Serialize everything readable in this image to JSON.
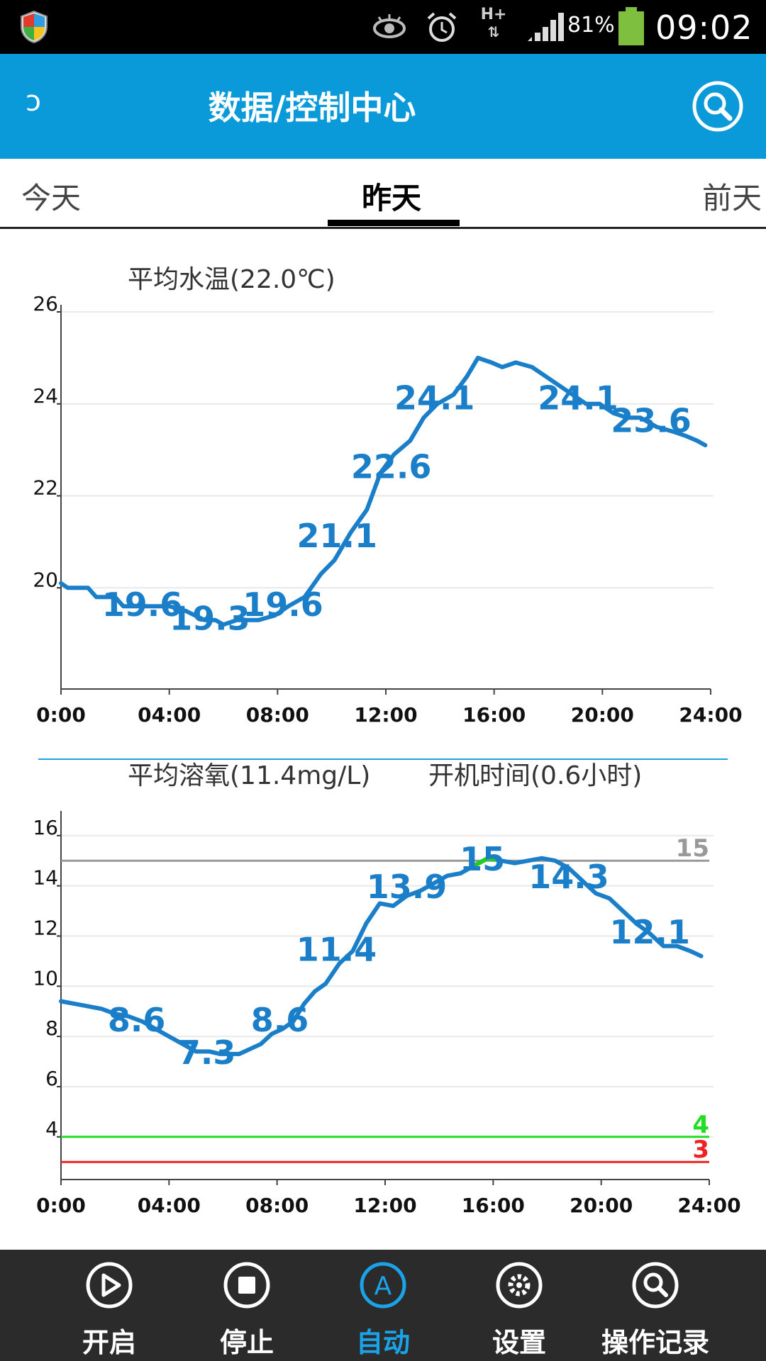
{
  "status_bar": {
    "battery_percent": "81%",
    "time": "09:02",
    "network": "H+",
    "icons": [
      "shield-icon",
      "eye-icon",
      "alarm-icon",
      "network-h-plus-icon",
      "signal-icon",
      "battery-icon"
    ]
  },
  "app_bar": {
    "back_glyph": "ↄ",
    "title": "数据/控制中心",
    "search_icon": "search-icon",
    "color": "#0a9ad9"
  },
  "tabs": [
    {
      "label": "今天"
    },
    {
      "label": "昨天",
      "active": true
    },
    {
      "label": "前天"
    }
  ],
  "charts": {
    "temperature": {
      "title": "平均水温(22.0℃)"
    },
    "oxygen": {
      "title": "平均溶氧(11.4mg/L)",
      "runtime": "开机时间(0.6小时)"
    }
  },
  "chart_data": [
    {
      "type": "line",
      "title": "平均水温(22.0℃)",
      "x_ticks": [
        "0:00",
        "04:00",
        "08:00",
        "12:00",
        "16:00",
        "20:00",
        "24:00"
      ],
      "y_ticks": [
        "20",
        "22",
        "24",
        "26"
      ],
      "ylim": [
        17.8,
        26
      ],
      "xlim_hours": [
        0,
        24
      ],
      "line_color": "#1a7fc8",
      "series": [
        {
          "hours": [
            0,
            0.25,
            1,
            1.3,
            2,
            2.3,
            4,
            4.6,
            5.3,
            5.7,
            6,
            6.5,
            7,
            7.3,
            7.9,
            8.4,
            9,
            9.6,
            10.1,
            10.7,
            11.3,
            11.8,
            12.3,
            12.9,
            13.4,
            13.9,
            14.5,
            15,
            15.4,
            15.9,
            16.3,
            16.8,
            17.4,
            17.9,
            18.4,
            18.9,
            19.4,
            19.9,
            20.4,
            20.9,
            21.4,
            22,
            22.6,
            23.1,
            23.5,
            23.8
          ],
          "values": [
            20.1,
            20.0,
            20.0,
            19.8,
            19.8,
            19.6,
            19.6,
            19.5,
            19.3,
            19.3,
            19.2,
            19.3,
            19.3,
            19.3,
            19.4,
            19.6,
            19.8,
            20.3,
            20.6,
            21.2,
            21.7,
            22.5,
            22.9,
            23.2,
            23.7,
            24.0,
            24.2,
            24.6,
            25.0,
            24.9,
            24.8,
            24.9,
            24.8,
            24.6,
            24.4,
            24.2,
            24.0,
            24.0,
            23.8,
            23.7,
            23.7,
            23.5,
            23.4,
            23.3,
            23.2,
            23.1
          ]
        }
      ],
      "annotations": [
        {
          "hour": 3,
          "value": 19.6,
          "label": "19.6"
        },
        {
          "hour": 5.5,
          "value": 19.3,
          "label": "19.3"
        },
        {
          "hour": 8.2,
          "value": 19.6,
          "label": "19.6"
        },
        {
          "hour": 10.2,
          "value": 21.1,
          "label": "21.1"
        },
        {
          "hour": 12.2,
          "value": 22.6,
          "label": "22.6"
        },
        {
          "hour": 13.8,
          "value": 24.1,
          "label": "24.1"
        },
        {
          "hour": 19.1,
          "value": 24.1,
          "label": "24.1"
        },
        {
          "hour": 21.8,
          "value": 23.6,
          "label": "23.6"
        }
      ]
    },
    {
      "type": "line",
      "title": "平均溶氧(11.4mg/L)",
      "subtitle": "开机时间(0.6小时)",
      "x_ticks": [
        "0:00",
        "04:00",
        "08:00",
        "12:00",
        "16:00",
        "20:00",
        "24:00"
      ],
      "y_ticks": [
        "4",
        "6",
        "8",
        "10",
        "12",
        "14",
        "16"
      ],
      "ylim": [
        2.3,
        16.7
      ],
      "xlim_hours": [
        0,
        24
      ],
      "line_color": "#1a7fc8",
      "series": [
        {
          "hours": [
            0,
            0.5,
            1,
            1.5,
            2,
            2.5,
            3,
            3.5,
            4,
            4.5,
            5,
            5.5,
            5.9,
            6.2,
            6.6,
            7,
            7.4,
            7.8,
            8.2,
            8.6,
            9,
            9.4,
            9.8,
            10.3,
            10.8,
            11.3,
            11.8,
            12.3,
            12.8,
            13.3,
            13.8,
            14.3,
            14.8,
            15.3,
            15.8,
            16.3,
            16.8,
            17.3,
            17.8,
            18.3,
            18.8,
            19.3,
            19.8,
            20.3,
            20.8,
            21.3,
            21.8,
            22.3,
            22.8,
            23.3,
            23.7
          ],
          "values": [
            9.4,
            9.3,
            9.2,
            9.1,
            8.9,
            8.8,
            8.6,
            8.3,
            8.0,
            7.7,
            7.4,
            7.4,
            7.3,
            7.3,
            7.3,
            7.5,
            7.7,
            8.1,
            8.3,
            8.6,
            9.3,
            9.8,
            10.1,
            10.9,
            11.4,
            12.5,
            13.3,
            13.2,
            13.6,
            13.8,
            14.1,
            14.4,
            14.5,
            14.8,
            15.1,
            15.0,
            14.9,
            15.0,
            15.1,
            15.0,
            14.7,
            14.2,
            13.7,
            13.5,
            13.0,
            12.5,
            12.1,
            11.6,
            11.6,
            11.4,
            11.2
          ]
        }
      ],
      "highlight_segment": {
        "hours": [
          15.9,
          16.3
        ],
        "color": "#22cc22"
      },
      "reference_lines": [
        {
          "value": 15,
          "label": "15",
          "color": "#999999"
        },
        {
          "value": 4,
          "label": "4",
          "color": "#22dd22"
        },
        {
          "value": 3,
          "label": "3",
          "color": "#ee2222"
        }
      ],
      "annotations": [
        {
          "hour": 2.8,
          "value": 8.6,
          "label": "8.6"
        },
        {
          "hour": 5.4,
          "value": 7.3,
          "label": "7.3"
        },
        {
          "hour": 8.1,
          "value": 8.6,
          "label": "8.6"
        },
        {
          "hour": 10.2,
          "value": 11.4,
          "label": "11.4"
        },
        {
          "hour": 12.8,
          "value": 13.9,
          "label": "13.9"
        },
        {
          "hour": 15.6,
          "value": 15,
          "label": "15"
        },
        {
          "hour": 18.8,
          "value": 14.3,
          "label": "14.3"
        },
        {
          "hour": 21.8,
          "value": 12.1,
          "label": "12.1"
        }
      ]
    }
  ],
  "bottom_nav": [
    {
      "label": "开启",
      "icon": "play-icon"
    },
    {
      "label": "停止",
      "icon": "stop-icon"
    },
    {
      "label": "自动",
      "icon": "auto-a-icon",
      "active": true
    },
    {
      "label": "设置",
      "icon": "gear-icon"
    },
    {
      "label": "操作记录",
      "icon": "search-log-icon"
    }
  ],
  "colors": {
    "accent": "#0a9ad9",
    "nav_active": "#1aa3e8",
    "nav_bg": "#2b2b2b",
    "series": "#1a7fc8"
  }
}
